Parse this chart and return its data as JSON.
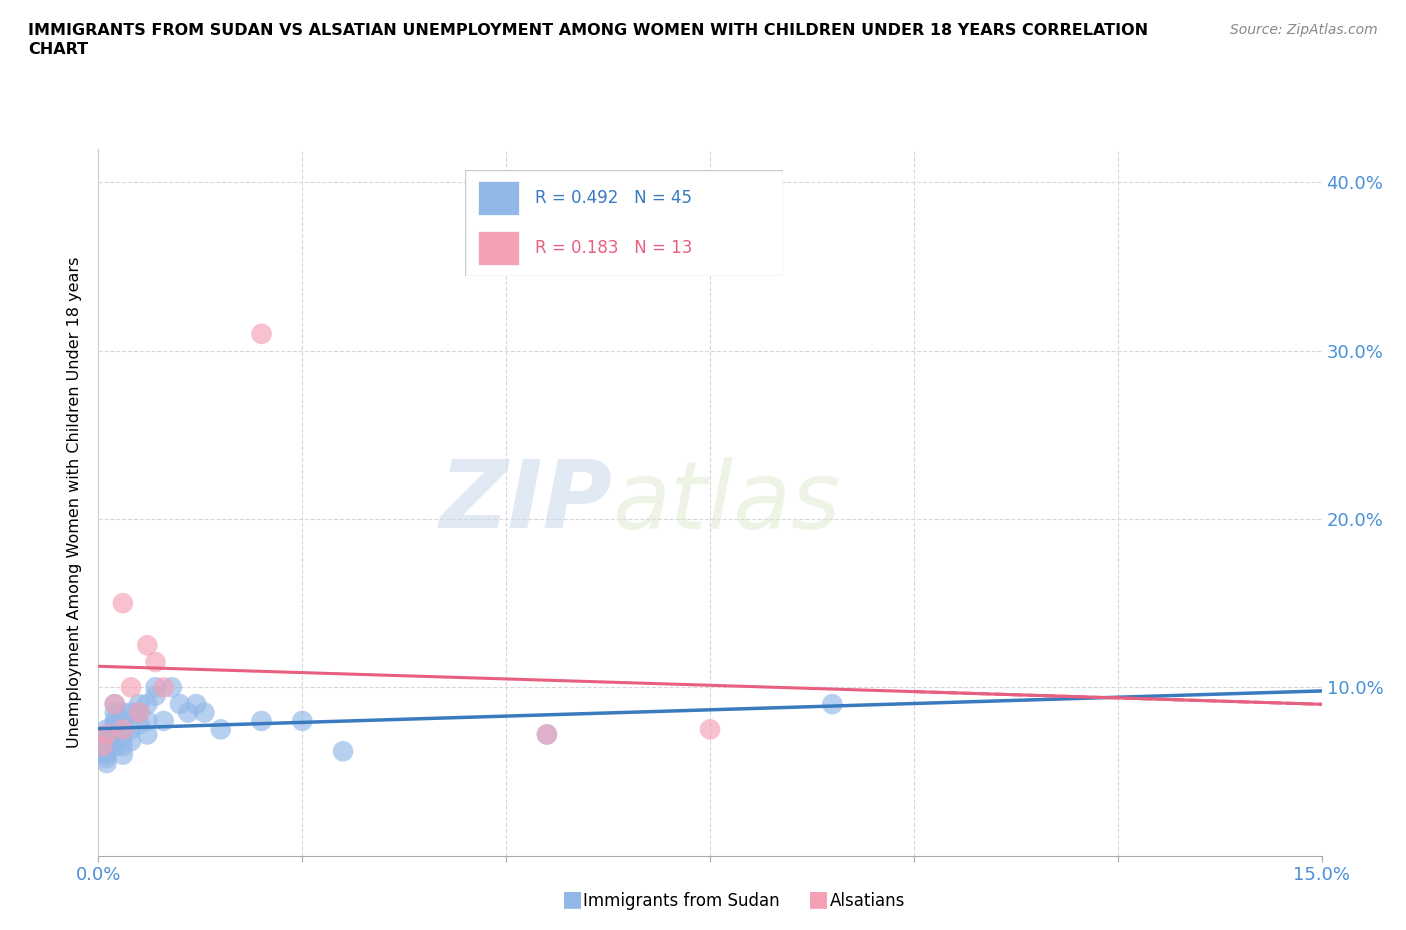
{
  "title_line1": "IMMIGRANTS FROM SUDAN VS ALSATIAN UNEMPLOYMENT AMONG WOMEN WITH CHILDREN UNDER 18 YEARS CORRELATION",
  "title_line2": "CHART",
  "source": "Source: ZipAtlas.com",
  "ylabel": "Unemployment Among Women with Children Under 18 years",
  "xlim": [
    0.0,
    0.15
  ],
  "ylim": [
    0.0,
    0.42
  ],
  "sudan_color": "#92b8e8",
  "alsatian_color": "#f4a0b5",
  "sudan_line_color": "#3a7abf",
  "alsatian_line_color": "#e86080",
  "watermark_color": "#d5e8f5",
  "background_color": "#ffffff",
  "grid_color": "#d8d8d8",
  "sudan_x": [
    0.0005,
    0.0005,
    0.001,
    0.001,
    0.001,
    0.001,
    0.001,
    0.001,
    0.001,
    0.001,
    0.002,
    0.002,
    0.002,
    0.002,
    0.002,
    0.002,
    0.002,
    0.003,
    0.003,
    0.003,
    0.003,
    0.003,
    0.003,
    0.004,
    0.004,
    0.004,
    0.005,
    0.005,
    0.005,
    0.006,
    0.006,
    0.006,
    0.007,
    0.007,
    0.008,
    0.009,
    0.01,
    0.011,
    0.012,
    0.013,
    0.015,
    0.02,
    0.025,
    0.03,
    0.055,
    0.09
  ],
  "sudan_y": [
    0.065,
    0.062,
    0.07,
    0.075,
    0.06,
    0.055,
    0.058,
    0.062,
    0.068,
    0.072,
    0.08,
    0.085,
    0.09,
    0.07,
    0.065,
    0.072,
    0.078,
    0.065,
    0.07,
    0.075,
    0.06,
    0.08,
    0.085,
    0.085,
    0.075,
    0.068,
    0.09,
    0.085,
    0.078,
    0.09,
    0.08,
    0.072,
    0.095,
    0.1,
    0.08,
    0.1,
    0.09,
    0.085,
    0.09,
    0.085,
    0.075,
    0.08,
    0.08,
    0.062,
    0.072,
    0.09
  ],
  "alsatian_x": [
    0.0005,
    0.001,
    0.002,
    0.003,
    0.003,
    0.004,
    0.005,
    0.006,
    0.007,
    0.008,
    0.02,
    0.055,
    0.075
  ],
  "alsatian_y": [
    0.065,
    0.072,
    0.09,
    0.075,
    0.15,
    0.1,
    0.085,
    0.125,
    0.115,
    0.1,
    0.31,
    0.072,
    0.075
  ]
}
